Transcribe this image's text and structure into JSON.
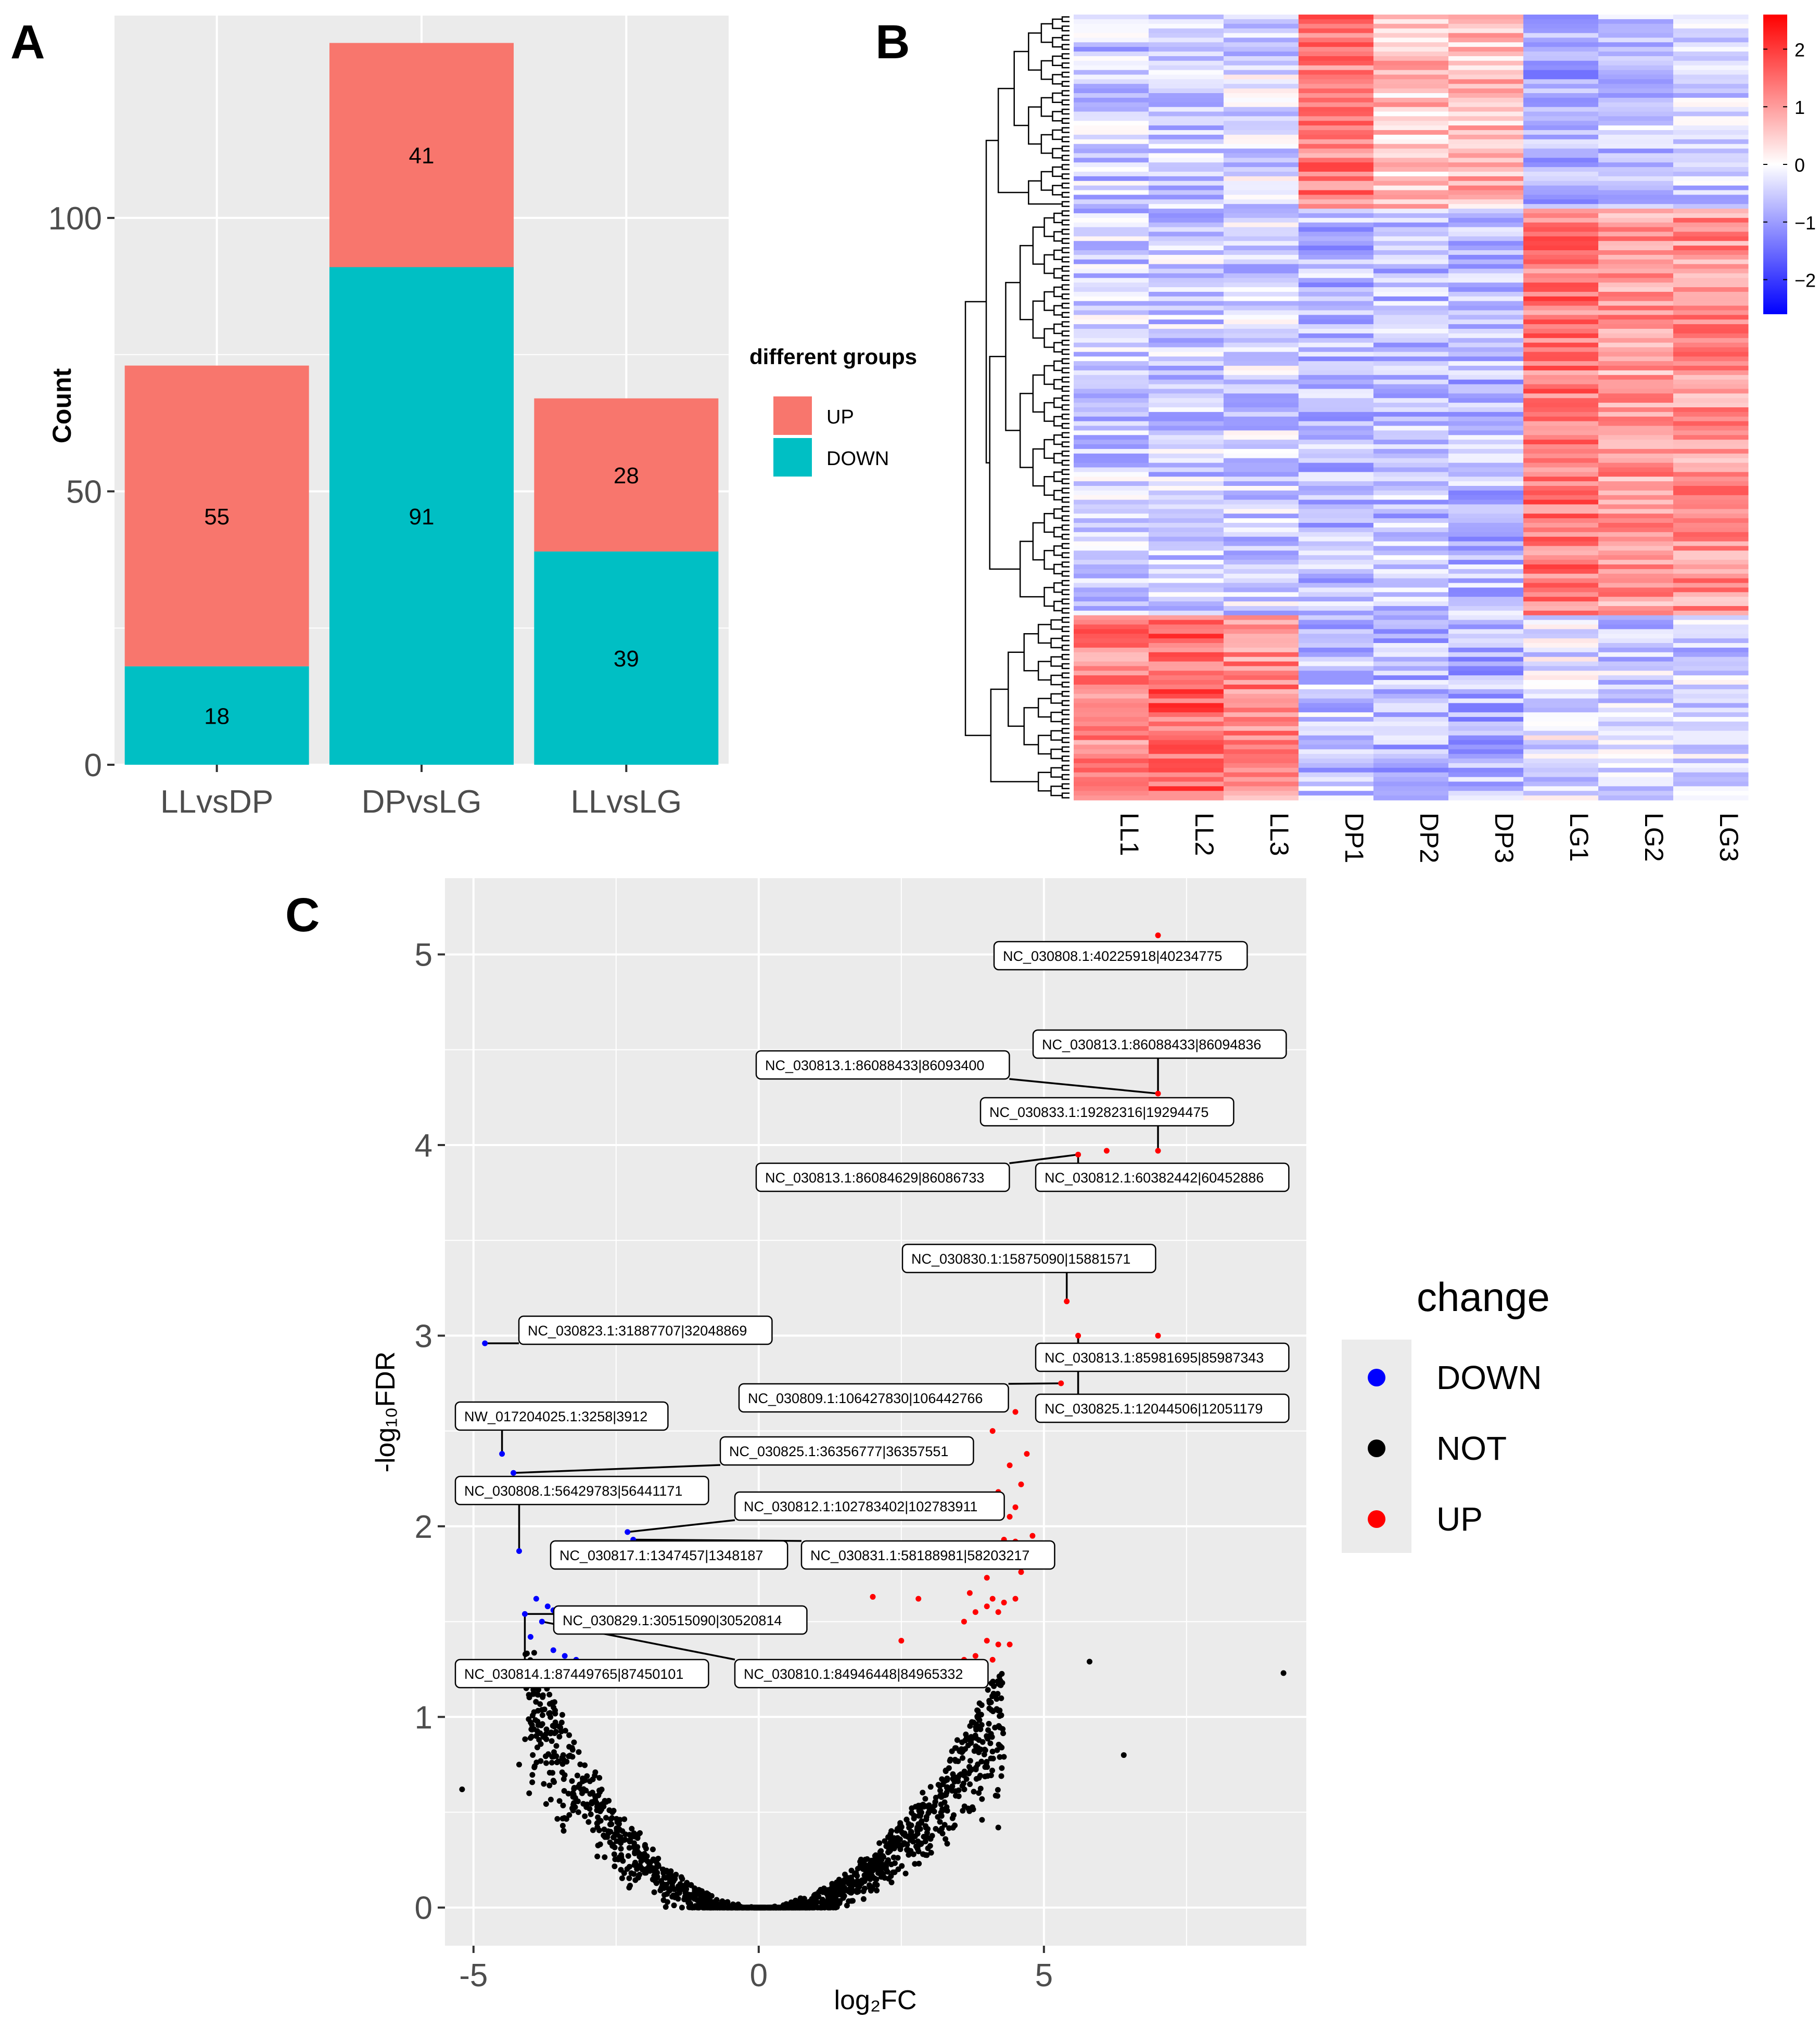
{
  "panels": {
    "a": "A",
    "b": "B",
    "c": "C"
  },
  "colors": {
    "up": "#F8766D",
    "down": "#00BFC4",
    "panel_bg": "#EBEBEB",
    "grid": "#FFFFFF",
    "volcano_down": "#0000FF",
    "volcano_not": "#000000",
    "volcano_up": "#FF0000",
    "heat_low": "#0000FF",
    "heat_mid": "#FFFFFF",
    "heat_high": "#FF0000"
  },
  "chart_data": [
    {
      "type": "bar",
      "stacked": true,
      "title": "",
      "xlabel": "",
      "ylabel": "Count",
      "categories": [
        "LLvsDP",
        "DPvsLG",
        "LLvsLG"
      ],
      "series": [
        {
          "name": "DOWN",
          "values": [
            18,
            91,
            39
          ]
        },
        {
          "name": "UP",
          "values": [
            55,
            41,
            28
          ]
        }
      ],
      "data_labels": {
        "DOWN": [
          "18",
          "91",
          "39"
        ],
        "UP": [
          "55",
          "41",
          "28"
        ]
      },
      "ylim": [
        0,
        137
      ],
      "yticks": [
        0,
        50,
        100
      ],
      "ytick_labels": [
        "0",
        "50",
        "100"
      ],
      "legend": {
        "title": "different groups",
        "entries": [
          "UP",
          "DOWN"
        ],
        "position": "right"
      },
      "grid": true
    },
    {
      "type": "heatmap",
      "columns": [
        "LL1",
        "LL2",
        "LL3",
        "DP1",
        "DP2",
        "DP3",
        "LG1",
        "LG2",
        "LG3"
      ],
      "row_count": 170,
      "row_clusters": [
        {
          "name": "DP-high",
          "rows": 42,
          "means": [
            -0.55,
            -0.5,
            -0.4,
            1.3,
            0.6,
            0.7,
            -0.8,
            -0.6,
            -0.5
          ]
        },
        {
          "name": "LG-high",
          "rows": 88,
          "means": [
            -0.5,
            -0.5,
            -0.45,
            -0.7,
            -0.6,
            -0.7,
            1.4,
            1.0,
            1.1
          ]
        },
        {
          "name": "LL-high",
          "rows": 40,
          "means": [
            1.3,
            1.6,
            1.2,
            -0.6,
            -0.7,
            -0.8,
            -0.3,
            -0.5,
            -0.5
          ]
        }
      ],
      "color_scale": {
        "min": -2.6,
        "max": 2.6
      },
      "legend_ticks": [
        2,
        1,
        0,
        -1,
        -2
      ],
      "legend_tick_labels": [
        "2",
        "1",
        "0",
        "−1",
        "−2"
      ],
      "dendrogram": "rows"
    },
    {
      "type": "scatter",
      "xlabel": "log₂FC",
      "ylabel": "-log₁₀FDR",
      "xlim": [
        -5.5,
        9.6
      ],
      "ylim": [
        -0.2,
        5.4
      ],
      "xticks": [
        -5,
        0,
        5
      ],
      "xtick_labels": [
        "-5",
        "0",
        "5"
      ],
      "yticks": [
        0,
        1,
        2,
        3,
        4,
        5
      ],
      "ytick_labels": [
        "0",
        "1",
        "2",
        "3",
        "4",
        "5"
      ],
      "legend": {
        "title": "change",
        "entries": [
          "DOWN",
          "NOT",
          "UP"
        ],
        "position": "right"
      },
      "grid": true,
      "points_up": [
        [
          7.0,
          5.1
        ],
        [
          7.0,
          4.27
        ],
        [
          5.6,
          3.95
        ],
        [
          6.1,
          3.97
        ],
        [
          7.0,
          3.97
        ],
        [
          5.4,
          3.18
        ],
        [
          5.6,
          3.0
        ],
        [
          7.0,
          3.0
        ],
        [
          5.3,
          2.75
        ],
        [
          4.1,
          2.5
        ],
        [
          4.5,
          2.6
        ],
        [
          4.7,
          2.38
        ],
        [
          4.4,
          2.32
        ],
        [
          4.2,
          2.18
        ],
        [
          4.6,
          2.22
        ],
        [
          4.5,
          2.1
        ],
        [
          4.4,
          2.05
        ],
        [
          4.8,
          1.95
        ],
        [
          4.3,
          1.93
        ],
        [
          4.5,
          1.92
        ],
        [
          4.2,
          1.9
        ],
        [
          4.0,
          1.85
        ],
        [
          4.6,
          1.76
        ],
        [
          4.1,
          1.62
        ],
        [
          4.3,
          1.6
        ],
        [
          4.5,
          1.62
        ],
        [
          4.0,
          1.58
        ],
        [
          4.2,
          1.55
        ],
        [
          3.8,
          1.55
        ],
        [
          3.6,
          1.5
        ],
        [
          4.2,
          1.38
        ],
        [
          4.4,
          1.38
        ],
        [
          4.0,
          1.4
        ],
        [
          3.6,
          1.3
        ],
        [
          3.9,
          1.28
        ],
        [
          4.1,
          1.3
        ],
        [
          3.8,
          1.32
        ],
        [
          2.0,
          1.63
        ],
        [
          2.8,
          1.62
        ],
        [
          2.5,
          1.4
        ],
        [
          3.7,
          1.65
        ],
        [
          4.0,
          1.73
        ]
      ],
      "points_down": [
        [
          -4.8,
          2.96
        ],
        [
          -4.5,
          2.38
        ],
        [
          -4.3,
          2.28
        ],
        [
          -2.3,
          1.97
        ],
        [
          -2.2,
          1.93
        ],
        [
          -4.2,
          1.87
        ],
        [
          -3.9,
          1.62
        ],
        [
          -3.7,
          1.58
        ],
        [
          -3.6,
          1.56
        ],
        [
          -4.1,
          1.54
        ],
        [
          -3.8,
          1.5
        ],
        [
          -3.5,
          1.45
        ],
        [
          -4.0,
          1.42
        ],
        [
          -3.6,
          1.35
        ],
        [
          -3.4,
          1.32
        ],
        [
          -3.2,
          1.3
        ]
      ],
      "points_not_outliers": [
        [
          9.2,
          1.23
        ],
        [
          5.8,
          1.29
        ],
        [
          6.4,
          0.8
        ],
        [
          4.2,
          0.42
        ],
        [
          -5.2,
          0.62
        ],
        [
          -4.2,
          0.75
        ],
        [
          -3.9,
          0.9
        ]
      ],
      "labels": [
        {
          "text": "NC_030808.1:40225918|40234775",
          "x": 7.0,
          "y": 5.1
        },
        {
          "text": "NC_030813.1:86088433|86094836",
          "x": 7.0,
          "y": 4.27
        },
        {
          "text": "NC_030813.1:86088433|86093400",
          "x": 7.0,
          "y": 4.27
        },
        {
          "text": "NC_030833.1:19282316|19294475",
          "x": 7.0,
          "y": 3.97
        },
        {
          "text": "NC_030813.1:86084629|86086733",
          "x": 5.6,
          "y": 3.95
        },
        {
          "text": "NC_030812.1:60382442|60452886",
          "x": 5.6,
          "y": 3.95
        },
        {
          "text": "NC_030830.1:15875090|15881571",
          "x": 5.4,
          "y": 3.18
        },
        {
          "text": "NC_030823.1:31887707|32048869",
          "x": -4.8,
          "y": 2.96
        },
        {
          "text": "NC_030813.1:85981695|85987343",
          "x": 5.6,
          "y": 3.0
        },
        {
          "text": "NC_030809.1:106427830|106442766",
          "x": 5.3,
          "y": 2.75
        },
        {
          "text": "NC_030825.1:12044506|12051179",
          "x": 5.6,
          "y": 3.0
        },
        {
          "text": "NW_017204025.1:3258|3912",
          "x": -4.5,
          "y": 2.38
        },
        {
          "text": "NC_030825.1:36356777|36357551",
          "x": -4.3,
          "y": 2.28
        },
        {
          "text": "NC_030808.1:56429783|56441171",
          "x": -4.2,
          "y": 1.87
        },
        {
          "text": "NC_030812.1:102783402|102783911",
          "x": -2.3,
          "y": 1.97
        },
        {
          "text": "NC_030817.1:1347457|1348187",
          "x": -2.2,
          "y": 1.93
        },
        {
          "text": "NC_030831.1:58188981|58203217",
          "x": -2.2,
          "y": 1.93
        },
        {
          "text": "NC_030829.1:30515090|30520814",
          "x": -4.1,
          "y": 1.54
        },
        {
          "text": "NC_030814.1:87449765|87450101",
          "x": -4.1,
          "y": 1.54
        },
        {
          "text": "NC_030810.1:84946448|84965332",
          "x": -3.8,
          "y": 1.5
        }
      ]
    }
  ]
}
